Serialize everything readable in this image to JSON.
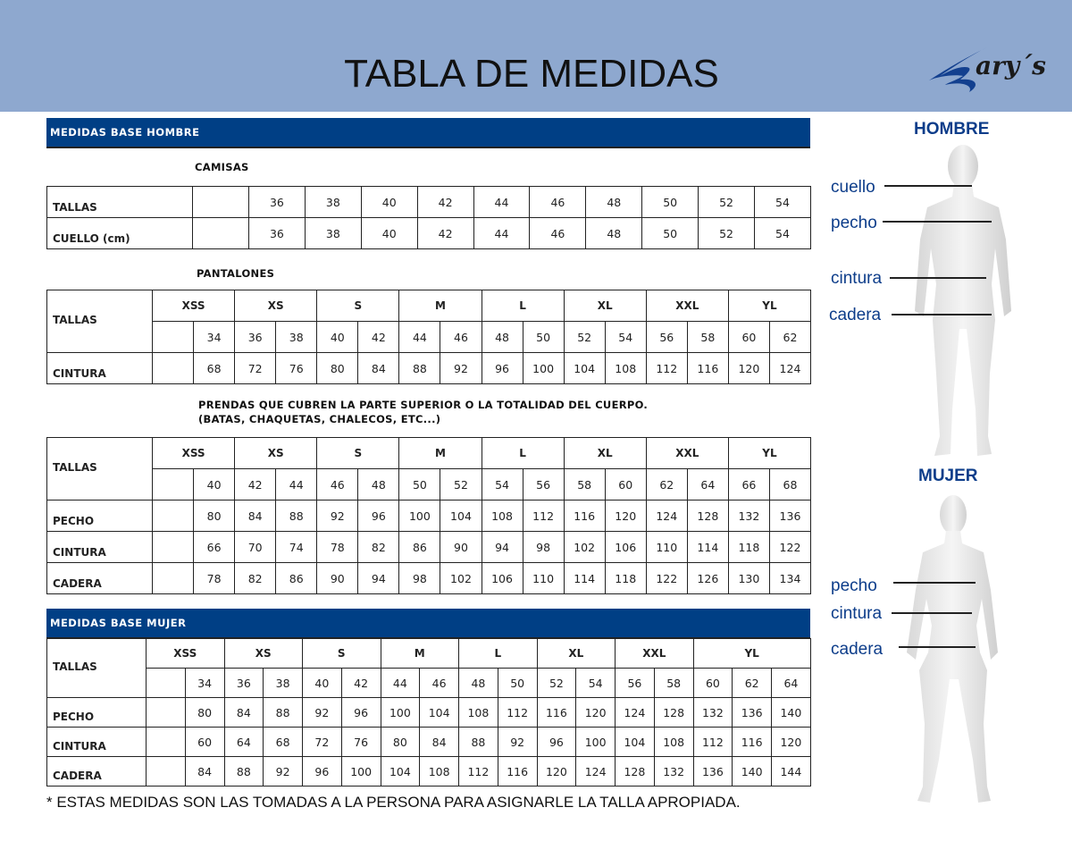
{
  "header": {
    "title": "TABLA DE MEDIDAS",
    "logo_text": "Gary's",
    "band_color": "#8ea8cf"
  },
  "accent_color": "#003f85",
  "hombre": {
    "bar_label": "MEDIDAS BASE HOMBRE",
    "camisas": {
      "title": "CAMISAS",
      "rows": [
        {
          "label": "TALLAS",
          "values": [
            "36",
            "38",
            "40",
            "42",
            "44",
            "46",
            "48",
            "50",
            "52",
            "54"
          ]
        },
        {
          "label": "CUELLO  (cm)",
          "values": [
            "36",
            "38",
            "40",
            "42",
            "44",
            "46",
            "48",
            "50",
            "52",
            "54"
          ]
        }
      ]
    },
    "pantalones": {
      "title": "PANTALONES",
      "header_label": "TALLAS",
      "groups": [
        "XSS",
        "XS",
        "S",
        "M",
        "L",
        "XL",
        "XXL",
        "YL"
      ],
      "sizes": [
        "",
        "34",
        "36",
        "38",
        "40",
        "42",
        "44",
        "46",
        "48",
        "50",
        "52",
        "54",
        "56",
        "58",
        "60",
        "62"
      ],
      "rows": [
        {
          "label": "CINTURA",
          "values": [
            "",
            "68",
            "72",
            "76",
            "80",
            "84",
            "88",
            "92",
            "96",
            "100",
            "104",
            "108",
            "112",
            "116",
            "120",
            "124"
          ]
        }
      ]
    },
    "prendas": {
      "title_line1": "PRENDAS QUE CUBREN LA PARTE SUPERIOR O LA TOTALIDAD DEL CUERPO.",
      "title_line2": "(BATAS, CHAQUETAS, CHALECOS, ETC...)",
      "header_label": "TALLAS",
      "groups": [
        "XSS",
        "XS",
        "S",
        "M",
        "L",
        "XL",
        "XXL",
        "YL"
      ],
      "sizes": [
        "",
        "40",
        "42",
        "44",
        "46",
        "48",
        "50",
        "52",
        "54",
        "56",
        "58",
        "60",
        "62",
        "64",
        "66",
        "68"
      ],
      "rows": [
        {
          "label": "PECHO",
          "values": [
            "",
            "80",
            "84",
            "88",
            "92",
            "96",
            "100",
            "104",
            "108",
            "112",
            "116",
            "120",
            "124",
            "128",
            "132",
            "136"
          ]
        },
        {
          "label": "CINTURA",
          "values": [
            "",
            "66",
            "70",
            "74",
            "78",
            "82",
            "86",
            "90",
            "94",
            "98",
            "102",
            "106",
            "110",
            "114",
            "118",
            "122"
          ]
        },
        {
          "label": "CADERA",
          "values": [
            "",
            "78",
            "82",
            "86",
            "90",
            "94",
            "98",
            "102",
            "106",
            "110",
            "114",
            "118",
            "122",
            "126",
            "130",
            "134"
          ]
        }
      ]
    }
  },
  "mujer": {
    "bar_label": "MEDIDAS BASE MUJER",
    "header_label": "TALLAS",
    "groups": [
      "XSS",
      "XS",
      "S",
      "M",
      "L",
      "XL",
      "XXL",
      "YL"
    ],
    "sizes": [
      "",
      "34",
      "36",
      "38",
      "40",
      "42",
      "44",
      "46",
      "48",
      "50",
      "52",
      "54",
      "56",
      "58",
      "60",
      "62",
      "64"
    ],
    "rows": [
      {
        "label": "PECHO",
        "values": [
          "",
          "80",
          "84",
          "88",
          "92",
          "96",
          "100",
          "104",
          "108",
          "112",
          "116",
          "120",
          "124",
          "128",
          "132",
          "136",
          "140"
        ]
      },
      {
        "label": "CINTURA",
        "values": [
          "",
          "60",
          "64",
          "68",
          "72",
          "76",
          "80",
          "84",
          "88",
          "92",
          "96",
          "100",
          "104",
          "108",
          "112",
          "116",
          "120"
        ]
      },
      {
        "label": "CADERA",
        "values": [
          "",
          "84",
          "88",
          "92",
          "96",
          "100",
          "104",
          "108",
          "112",
          "116",
          "120",
          "124",
          "128",
          "132",
          "136",
          "140",
          "144"
        ]
      }
    ]
  },
  "footnote": "* ESTAS MEDIDAS SON LAS TOMADAS A LA PERSONA PARA ASIGNARLE LA TALLA APROPIADA.",
  "figures": {
    "hombre": {
      "title": "HOMBRE",
      "labels": [
        "cuello",
        "pecho",
        "cintura",
        "cadera"
      ]
    },
    "mujer": {
      "title": "MUJER",
      "labels": [
        "pecho",
        "cintura",
        "cadera"
      ]
    }
  }
}
